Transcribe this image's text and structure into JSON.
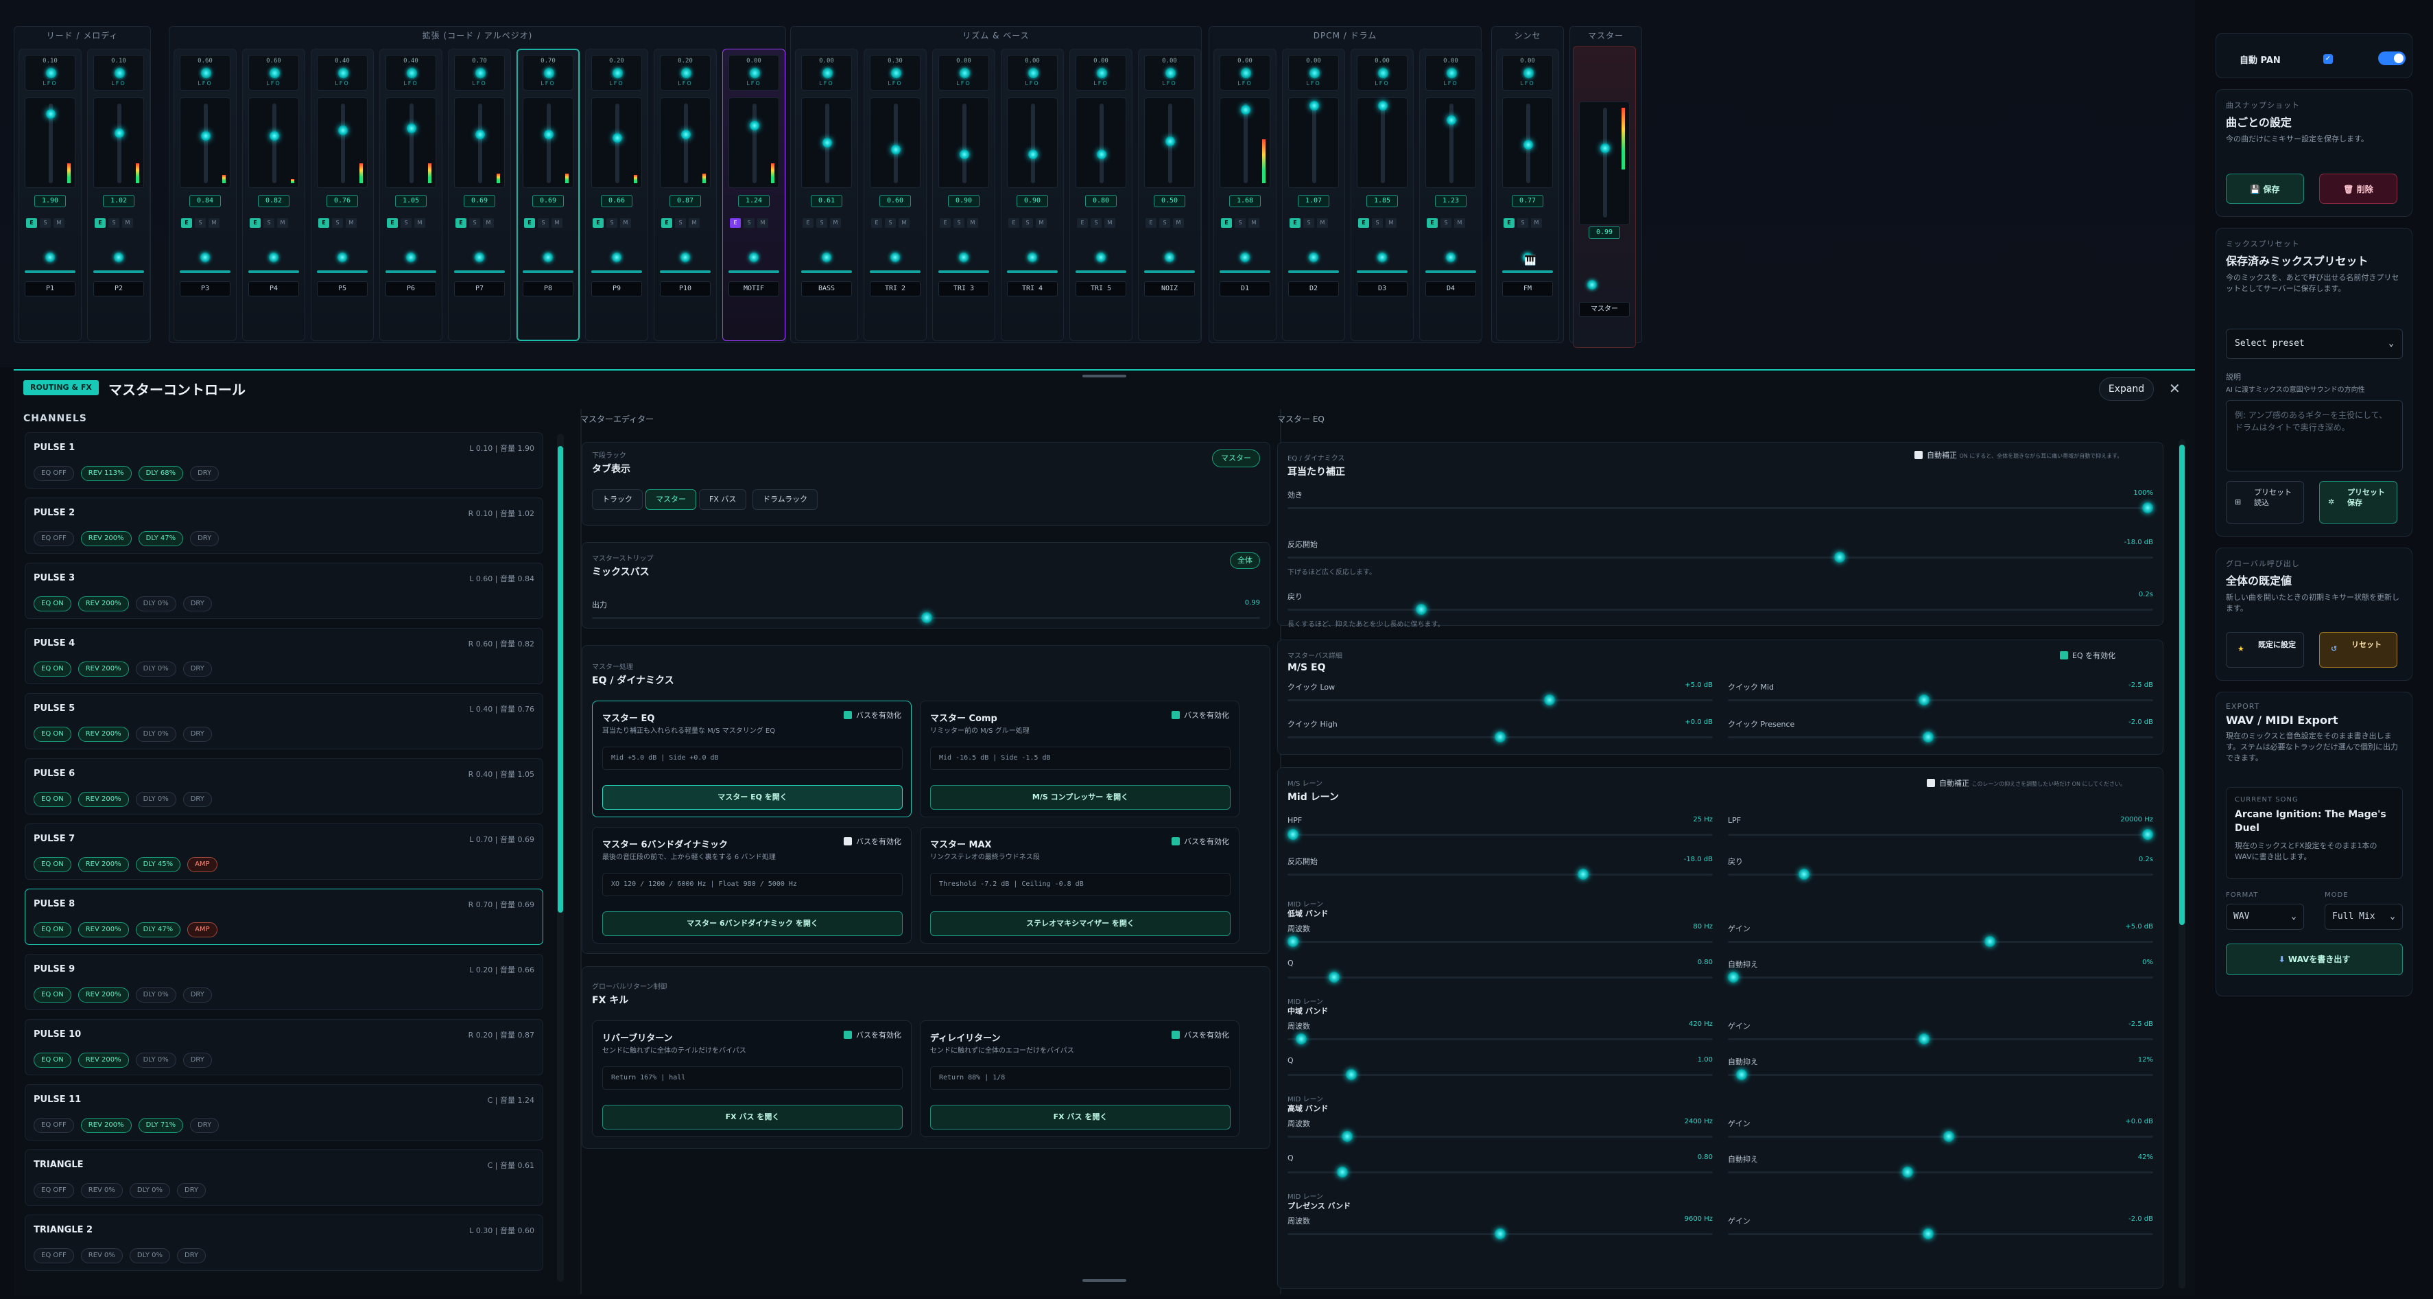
{
  "groups": [
    {
      "label": "リード / メロディ"
    },
    {
      "label": "拡張 (コード / アルペジオ)"
    },
    {
      "label": "リズム & ベース"
    },
    {
      "label": "DPCM / ドラム"
    },
    {
      "label": "シンセ"
    },
    {
      "label": "マスター"
    }
  ],
  "knob_caption": "LFO",
  "strips": [
    {
      "name": "P1",
      "send": "0.10",
      "vol": "1.90"
    },
    {
      "name": "P2",
      "send": "0.10",
      "vol": "1.02"
    },
    {
      "name": "P3",
      "send": "0.60",
      "vol": "0.84"
    },
    {
      "name": "P4",
      "send": "0.60",
      "vol": "0.82"
    },
    {
      "name": "P5",
      "send": "0.40",
      "vol": "0.76"
    },
    {
      "name": "P6",
      "send": "0.40",
      "vol": "1.05"
    },
    {
      "name": "P7",
      "send": "0.70",
      "vol": "0.69"
    },
    {
      "name": "P8",
      "send": "0.70",
      "vol": "0.69"
    },
    {
      "name": "P9",
      "send": "0.20",
      "vol": "0.66"
    },
    {
      "name": "P10",
      "send": "0.20",
      "vol": "0.87"
    },
    {
      "name": "MOTIF",
      "send": "0.00",
      "vol": "1.24"
    },
    {
      "name": "BASS",
      "send": "0.00",
      "vol": "0.61"
    },
    {
      "name": "TRI 2",
      "send": "0.30",
      "vol": "0.60"
    },
    {
      "name": "TRI 3",
      "send": "0.00",
      "vol": "0.90"
    },
    {
      "name": "TRI 4",
      "send": "0.00",
      "vol": "0.90"
    },
    {
      "name": "TRI 5",
      "send": "0.00",
      "vol": "0.80"
    },
    {
      "name": "NOIZ",
      "send": "0.00",
      "vol": "0.50"
    },
    {
      "name": "D1",
      "send": "0.00",
      "vol": "1.68"
    },
    {
      "name": "D2",
      "send": "0.00",
      "vol": "1.07"
    },
    {
      "name": "D3",
      "send": "0.00",
      "vol": "1.85"
    },
    {
      "name": "D4",
      "send": "0.00",
      "vol": "1.23"
    },
    {
      "name": "FM",
      "send": "0.00",
      "vol": "0.77"
    }
  ],
  "master_strip": {
    "name": "マスター",
    "vol": "0.99"
  },
  "esm": {
    "e": "E",
    "s": "S",
    "m": "M"
  },
  "side": {
    "auto_pan_label": "自動 PAN",
    "snapshot": {
      "label": "曲スナップショット",
      "title": "曲ごとの設定",
      "desc": "今の曲だけにミキサー設定を保存します。",
      "save": "保存",
      "delete": "削除"
    },
    "mixpreset": {
      "label": "ミックスプリセット",
      "title": "保存済みミックスプリセット",
      "desc": "今のミックスを、あとで呼び出せる名前付きプリセットとしてサーバーに保存します。",
      "select": "Select preset",
      "desc_label": "説明",
      "desc_hint": "AI に渡すミックスの意図やサウンドの方向性",
      "placeholder": "例: アンプ感のあるギターを主役にして、ドラムはタイトで奥行き深め。",
      "load": "プリセット読込",
      "save": "プリセット保存"
    },
    "global": {
      "label": "グローバル呼び出し",
      "title": "全体の既定値",
      "desc": "新しい曲を開いたときの初期ミキサー状態を更新します。",
      "set": "既定に設定",
      "reset": "リセット"
    },
    "export": {
      "label": "EXPORT",
      "title": "WAV / MIDI Export",
      "desc": "現在のミックスと音色設定をそのまま書き出します。ステムは必要なトラックだけ選んで個別に出力できます。",
      "song_label": "CURRENT SONG",
      "song": "Arcane Ignition: The Mage's Duel",
      "song_desc": "現在のミックスとFX設定をそのまま1本のWAVに書き出します。",
      "format_label": "FORMAT",
      "mode_label": "MODE",
      "format": "WAV",
      "mode": "Full Mix",
      "button": "WAVを書き出す"
    }
  },
  "panel": {
    "badge": "ROUTING & FX",
    "title": "マスターコントロール",
    "expand": "Expand",
    "close": "✕",
    "channels_header": "CHANNELS",
    "channels": [
      {
        "name": "PULSE 1",
        "info": "L 0.10 | 音量 1.90",
        "tags": [
          [
            "EQ OFF",
            ""
          ],
          [
            "REV 113%",
            "g"
          ],
          [
            "DLY 68%",
            "g"
          ],
          [
            "DRY",
            ""
          ]
        ]
      },
      {
        "name": "PULSE 2",
        "info": "R 0.10 | 音量 1.02",
        "tags": [
          [
            "EQ OFF",
            ""
          ],
          [
            "REV 200%",
            "g"
          ],
          [
            "DLY 47%",
            "g"
          ],
          [
            "DRY",
            ""
          ]
        ]
      },
      {
        "name": "PULSE 3",
        "info": "L 0.60 | 音量 0.84",
        "tags": [
          [
            "EQ ON",
            "g"
          ],
          [
            "REV 200%",
            "g"
          ],
          [
            "DLY 0%",
            ""
          ],
          [
            "DRY",
            ""
          ]
        ]
      },
      {
        "name": "PULSE 4",
        "info": "R 0.60 | 音量 0.82",
        "tags": [
          [
            "EQ ON",
            "g"
          ],
          [
            "REV 200%",
            "g"
          ],
          [
            "DLY 0%",
            ""
          ],
          [
            "DRY",
            ""
          ]
        ]
      },
      {
        "name": "PULSE 5",
        "info": "L 0.40 | 音量 0.76",
        "tags": [
          [
            "EQ ON",
            "g"
          ],
          [
            "REV 200%",
            "g"
          ],
          [
            "DLY 0%",
            ""
          ],
          [
            "DRY",
            ""
          ]
        ]
      },
      {
        "name": "PULSE 6",
        "info": "R 0.40 | 音量 1.05",
        "tags": [
          [
            "EQ ON",
            "g"
          ],
          [
            "REV 200%",
            "g"
          ],
          [
            "DLY 0%",
            ""
          ],
          [
            "DRY",
            ""
          ]
        ]
      },
      {
        "name": "PULSE 7",
        "info": "L 0.70 | 音量 0.69",
        "tags": [
          [
            "EQ ON",
            "g"
          ],
          [
            "REV 200%",
            "g"
          ],
          [
            "DLY 45%",
            "g"
          ],
          [
            "AMP",
            "r"
          ]
        ]
      },
      {
        "name": "PULSE 8",
        "info": "R 0.70 | 音量 0.69",
        "tags": [
          [
            "EQ ON",
            "g"
          ],
          [
            "REV 200%",
            "g"
          ],
          [
            "DLY 47%",
            "g"
          ],
          [
            "AMP",
            "r"
          ]
        ]
      },
      {
        "name": "PULSE 9",
        "info": "L 0.20 | 音量 0.66",
        "tags": [
          [
            "EQ ON",
            "g"
          ],
          [
            "REV 200%",
            "g"
          ],
          [
            "DLY 0%",
            ""
          ],
          [
            "DRY",
            ""
          ]
        ]
      },
      {
        "name": "PULSE 10",
        "info": "R 0.20 | 音量 0.87",
        "tags": [
          [
            "EQ ON",
            "g"
          ],
          [
            "REV 200%",
            "g"
          ],
          [
            "DLY 0%",
            ""
          ],
          [
            "DRY",
            ""
          ]
        ]
      },
      {
        "name": "PULSE 11",
        "info": "C | 音量 1.24",
        "tags": [
          [
            "EQ OFF",
            ""
          ],
          [
            "REV 200%",
            "g"
          ],
          [
            "DLY 71%",
            "g"
          ],
          [
            "DRY",
            ""
          ]
        ]
      },
      {
        "name": "TRIANGLE",
        "info": "C | 音量 0.61",
        "tags": [
          [
            "EQ OFF",
            ""
          ],
          [
            "REV 0%",
            ""
          ],
          [
            "DLY 0%",
            ""
          ],
          [
            "DRY",
            ""
          ]
        ]
      },
      {
        "name": "TRIANGLE 2",
        "info": "L 0.30 | 音量 0.60",
        "tags": [
          [
            "EQ OFF",
            ""
          ],
          [
            "REV 0%",
            ""
          ],
          [
            "DLY 0%",
            ""
          ],
          [
            "DRY",
            ""
          ]
        ]
      }
    ],
    "editor_header": "マスターエディター",
    "rack": {
      "sub": "下段ラック",
      "title": "タブ表示",
      "badge": "マスター",
      "tabs": [
        "トラック",
        "マスター",
        "FX バス",
        "ドラムラック"
      ]
    },
    "strip": {
      "sub": "マスターストリップ",
      "title": "ミックスバス",
      "badge": "全体",
      "out": "出力",
      "out_val": "0.99"
    },
    "proc": {
      "sub": "マスター処理",
      "title": "EQ / ダイナミクス",
      "cards": [
        {
          "title": "マスター EQ",
          "desc": "耳当たり補正も入れられる軽量な M/S マスタリング EQ",
          "info": "Mid +5.0 dB | Side +0.0 dB",
          "btn": "マスター EQ を開く",
          "enabled": "バスを有効化"
        },
        {
          "title": "マスター Comp",
          "desc": "リミッター前の M/S グルー処理",
          "info": "Mid -16.5 dB | Side -1.5 dB",
          "btn": "M/S コンプレッサー を開く",
          "enabled": "バスを有効化"
        },
        {
          "title": "マスター 6バンドダイナミック",
          "desc": "最後の音圧段の前で、上から軽く裏をする 6 バンド処理",
          "info": "XO 120 / 1200 / 6000 Hz | Float 980 / 5000 Hz",
          "btn": "マスター 6バンドダイナミック を開く",
          "enabled": "バスを有効化"
        },
        {
          "title": "マスター MAX",
          "desc": "リンクステレオの最終ラウドネス段",
          "info": "Threshold -7.2 dB | Ceiling -0.8 dB",
          "btn": "ステレオマキシマイザー を開く",
          "enabled": "バスを有効化"
        }
      ]
    },
    "fx": {
      "sub": "グローバルリターン制御",
      "title": "FX キル",
      "cards": [
        {
          "title": "リバーブリターン",
          "desc": "センドに触れずに全体のテイルだけをバイパス",
          "info": "Return 167% | hall",
          "btn": "FX バス を開く",
          "enabled": "バスを有効化"
        },
        {
          "title": "ディレイリターン",
          "desc": "センドに触れずに全体のエコーだけをバイパス",
          "info": "Return 88% | 1/8",
          "btn": "FX バス を開く",
          "enabled": "バスを有効化"
        }
      ]
    },
    "eq_header": "マスター  EQ",
    "ear": {
      "sub": "EQ / ダイナミクス",
      "title": "耳当たり補正",
      "auto": "自動補正",
      "auto_note": "ON にすると、全体を聴きながら耳に痛い帯域が自動で抑えます。",
      "rows": [
        {
          "label": "効き",
          "val": "100%",
          "pos": 1
        },
        {
          "label": "反応開始",
          "val": "-18.0 dB",
          "pos": 0.64,
          "note": "下げるほど広く反応します。"
        },
        {
          "label": "戻り",
          "val": "0.2s",
          "pos": 0.15,
          "note": "長くするほど、抑えたあとを少し長めに保ちます。"
        }
      ]
    },
    "ms": {
      "sub": "マスターバス詳細",
      "title": "M/S EQ",
      "enabled": "EQ を有効化",
      "rows": [
        {
          "l": "クイック Low",
          "lv": "+5.0 dB",
          "lp": 0.62,
          "r": "クイック Mid",
          "rv": "-2.5 dB",
          "rp": 0.46
        },
        {
          "l": "クイック High",
          "lv": "+0.0 dB",
          "lp": 0.5,
          "r": "クイック Presence",
          "rv": "-2.0 dB",
          "rp": 0.47
        }
      ]
    },
    "mid": {
      "sub": "M/S レーン",
      "title": "Mid レーン",
      "auto": "自動補正",
      "auto_note": "このレーンの抑えさを調整したい時だけ ON にしてください。",
      "hpf": {
        "l": "HPF",
        "v": "25 Hz",
        "p": 0.0
      },
      "lpf": {
        "l": "LPF",
        "v": "20000 Hz",
        "p": 1.0
      },
      "react": {
        "l": "反応開始",
        "v": "-18.0 dB",
        "p": 0.7
      },
      "ret": {
        "l": "戻り",
        "v": "0.2s",
        "p": 0.17
      },
      "bands": [
        {
          "sub": "MID レーン",
          "name": "低域 バンド",
          "freq": "80 Hz",
          "fp": 0.0,
          "gain": "+5.0 dB",
          "gp": 0.62,
          "q": "0.80",
          "qp": 0.1,
          "sup": "0%",
          "sp": 0.0
        },
        {
          "sub": "MID レーン",
          "name": "中域 バンド",
          "freq": "420 Hz",
          "fp": 0.02,
          "gain": "-2.5 dB",
          "gp": 0.46,
          "q": "1.00",
          "qp": 0.14,
          "sup": "12%",
          "sp": 0.02
        },
        {
          "sub": "MID レーン",
          "name": "高域 バンド",
          "freq": "2400 Hz",
          "fp": 0.13,
          "gain": "+0.0 dB",
          "gp": 0.52,
          "q": "0.80",
          "qp": 0.12,
          "sup": "42%",
          "sp": 0.42
        },
        {
          "sub": "MID レーン",
          "name": "プレゼンス バンド",
          "freq": "9600 Hz",
          "fp": 0.5,
          "gain": "-2.0 dB",
          "gp": 0.47
        }
      ],
      "labels": {
        "freq": "周波数",
        "gain": "ゲイン",
        "q": "Q",
        "sup": "自動抑え"
      }
    }
  }
}
